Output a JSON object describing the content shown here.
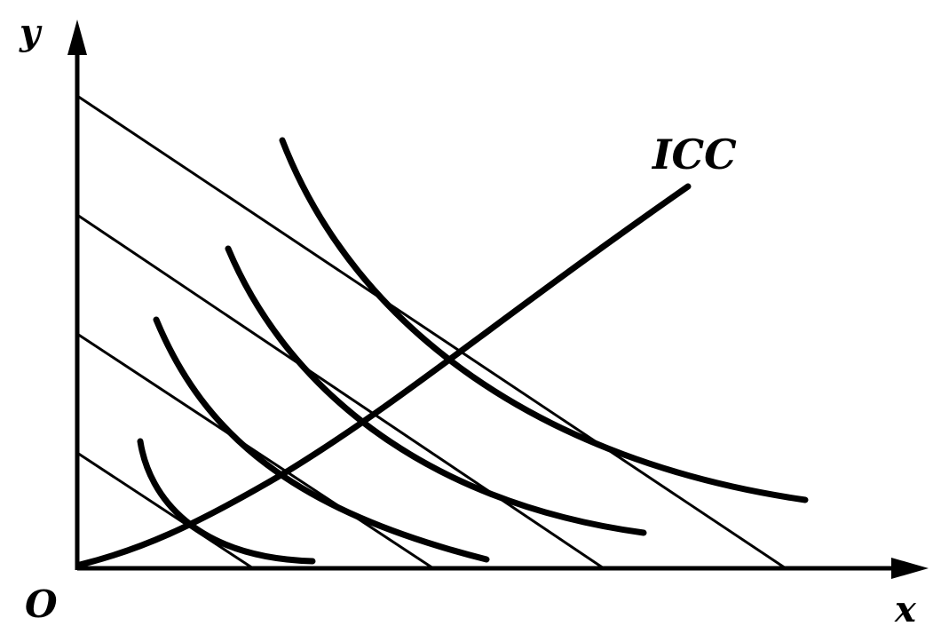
{
  "diagram": {
    "labels": {
      "y_axis": "y",
      "x_axis": "x",
      "origin": "O",
      "curve": "ICC"
    },
    "elements": {
      "budget_lines": 4,
      "indifference_curves": 4,
      "income_consumption_curve": 1
    },
    "colors": {
      "ink": "#000000",
      "background": "#ffffff"
    }
  }
}
